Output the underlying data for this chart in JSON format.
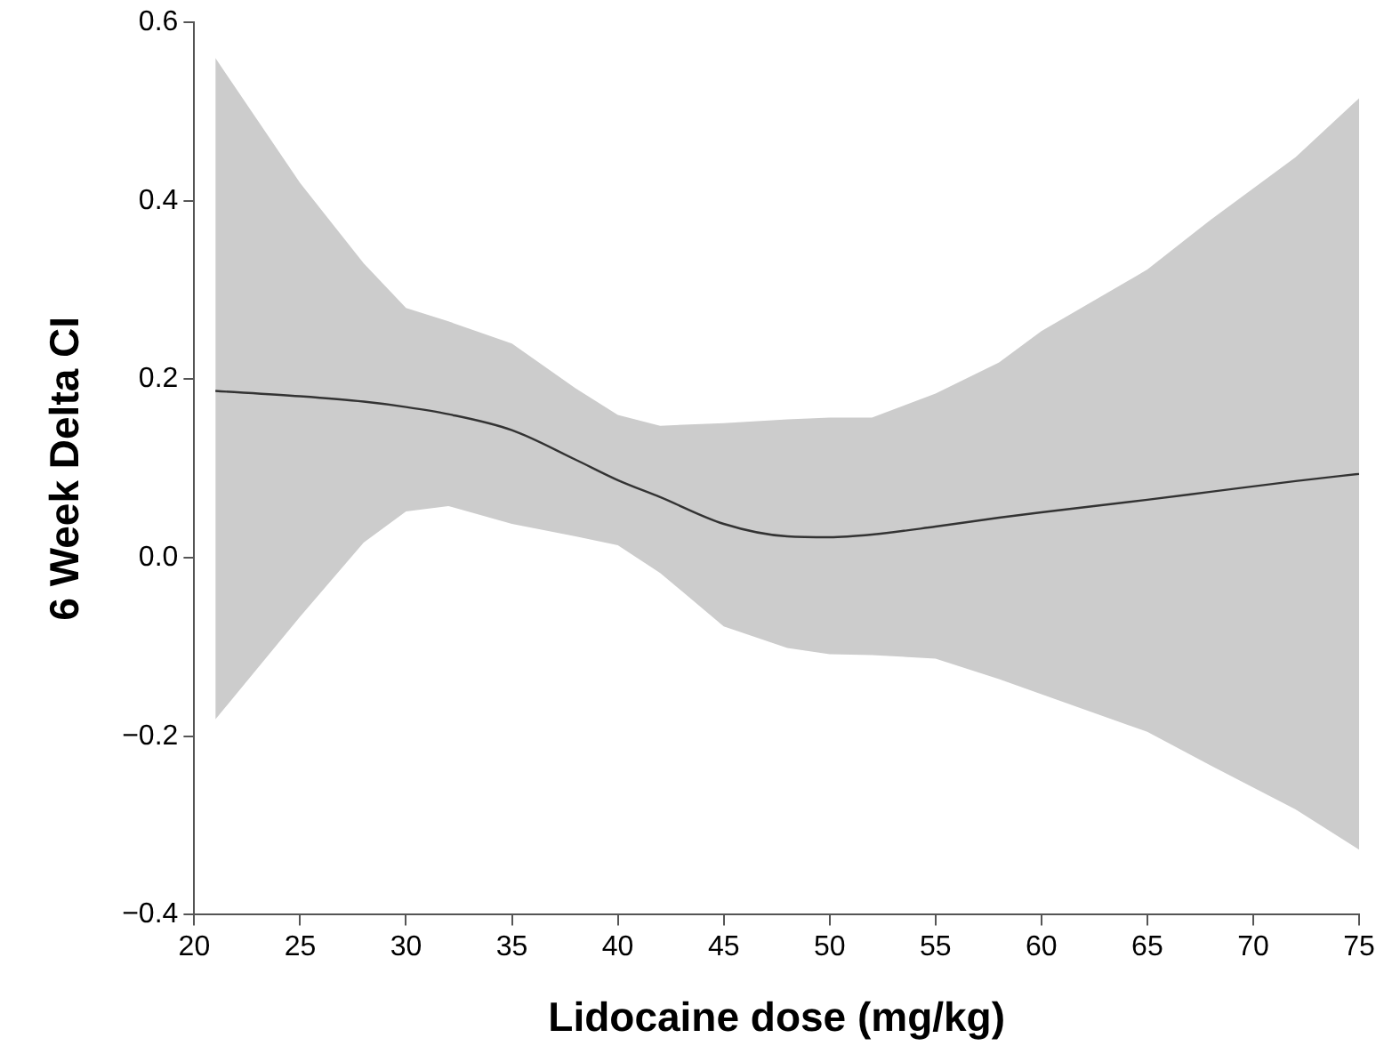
{
  "chart_data": {
    "type": "line",
    "xlabel": "Lidocaine dose (mg/kg)",
    "ylabel": "6 Week Delta CI",
    "x": [
      21,
      25,
      28,
      30,
      32,
      35,
      38,
      40,
      42,
      45,
      48,
      50,
      52,
      55,
      58,
      60,
      65,
      68,
      72,
      75
    ],
    "series": [
      {
        "color": "#333333",
        "values": [
          0.187,
          0.181,
          0.175,
          0.169,
          0.161,
          0.143,
          0.11,
          0.087,
          0.068,
          0.038,
          0.024,
          0.023,
          0.026,
          0.035,
          0.045,
          0.051,
          0.065,
          0.074,
          0.086,
          0.094
        ],
        "lower": [
          -0.181,
          -0.066,
          0.017,
          0.052,
          0.058,
          0.038,
          0.024,
          0.014,
          -0.017,
          -0.077,
          -0.101,
          -0.108,
          -0.109,
          -0.113,
          -0.136,
          -0.153,
          -0.195,
          -0.233,
          -0.282,
          -0.327
        ],
        "upper": [
          0.56,
          0.42,
          0.33,
          0.28,
          0.265,
          0.24,
          0.19,
          0.16,
          0.148,
          0.151,
          0.155,
          0.157,
          0.157,
          0.184,
          0.219,
          0.254,
          0.323,
          0.379,
          0.449,
          0.515
        ]
      }
    ],
    "marker": "none",
    "line_style": "solid",
    "xlim": [
      20,
      75
    ],
    "xticks": [
      20,
      25,
      30,
      35,
      40,
      45,
      50,
      55,
      60,
      65,
      70,
      75
    ],
    "ylim": [
      -0.4,
      0.6
    ],
    "yticks": [
      {
        "value": -0.4,
        "label": "−0.4"
      },
      {
        "value": -0.2,
        "label": "−0.2"
      },
      {
        "value": 0,
        "label": "0.0"
      },
      {
        "value": 0.2,
        "label": "0.2"
      },
      {
        "value": 0.4,
        "label": "0.4"
      },
      {
        "value": 0.6,
        "label": "0.6"
      }
    ]
  }
}
